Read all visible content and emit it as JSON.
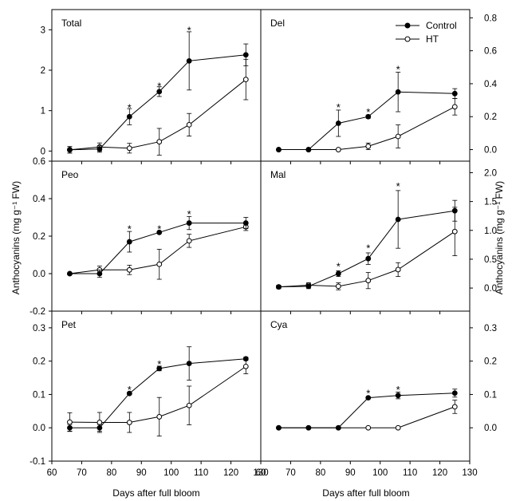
{
  "figure": {
    "x_axis_title": "Days after full bloom",
    "y_axis_title_left": "Anthocyanins (mg g⁻¹ FW)",
    "y_axis_title_right": "Anthocyanins (mg g⁻¹ FW)",
    "colors": {
      "line": "#000000",
      "control_marker": "#000000",
      "ht_marker": "#ffffff"
    }
  },
  "legend": {
    "items": [
      {
        "label": "Control",
        "marker": "filled-circle"
      },
      {
        "label": "HT",
        "marker": "open-circle"
      }
    ]
  },
  "chart_data": [
    {
      "type": "line",
      "title": "Total",
      "panel": "top-left",
      "y_axis_side": "left",
      "xlim": [
        60,
        130
      ],
      "ylim": [
        -0.25,
        3.5
      ],
      "yticks": [
        0,
        1,
        2,
        3
      ],
      "ytick_labels": [
        "0",
        "1",
        "2",
        "3"
      ],
      "xticks": [
        60,
        70,
        80,
        90,
        100,
        110,
        120,
        130
      ],
      "xtick_labels": [],
      "show_x_tick_labels": false,
      "x": [
        66,
        76,
        86,
        96,
        106,
        125
      ],
      "series": [
        {
          "name": "Control",
          "values": [
            0.03,
            0.05,
            0.85,
            1.47,
            2.23,
            2.38
          ],
          "errors": [
            0.08,
            0.08,
            0.2,
            0.12,
            0.72,
            0.27
          ]
        },
        {
          "name": "HT",
          "values": [
            0.03,
            0.1,
            0.07,
            0.23,
            0.65,
            1.77
          ],
          "errors": [
            0.08,
            0.1,
            0.12,
            0.33,
            0.28,
            0.5
          ]
        }
      ],
      "annotations": [
        {
          "text": "*",
          "x": 86,
          "y": 1.08
        },
        {
          "text": "*",
          "x": 96,
          "y": 1.62
        },
        {
          "text": "*",
          "x": 106,
          "y": 3.0
        }
      ]
    },
    {
      "type": "line",
      "title": "Del",
      "panel": "top-right",
      "y_axis_side": "right",
      "xlim": [
        60,
        130
      ],
      "ylim": [
        -0.07,
        0.85
      ],
      "yticks": [
        0.0,
        0.2,
        0.4,
        0.6,
        0.8
      ],
      "ytick_labels": [
        "0.0",
        "0.2",
        "0.4",
        "0.6",
        "0.8"
      ],
      "xticks": [
        60,
        70,
        80,
        90,
        100,
        110,
        120,
        130
      ],
      "xtick_labels": [],
      "show_x_tick_labels": false,
      "x": [
        66,
        76,
        86,
        96,
        106,
        125
      ],
      "series": [
        {
          "name": "Control",
          "values": [
            0.0,
            0.0,
            0.16,
            0.2,
            0.35,
            0.34
          ],
          "errors": [
            0.0,
            0.0,
            0.08,
            0.01,
            0.12,
            0.03
          ]
        },
        {
          "name": "HT",
          "values": [
            0.0,
            0.0,
            0.0,
            0.02,
            0.08,
            0.26
          ],
          "errors": [
            0.0,
            0.0,
            0.0,
            0.02,
            0.07,
            0.05
          ]
        }
      ],
      "annotations": [
        {
          "text": "*",
          "x": 86,
          "y": 0.26
        },
        {
          "text": "*",
          "x": 96,
          "y": 0.23
        },
        {
          "text": "*",
          "x": 106,
          "y": 0.49
        }
      ]
    },
    {
      "type": "line",
      "title": "Peo",
      "panel": "middle-left",
      "y_axis_side": "left",
      "xlim": [
        60,
        130
      ],
      "ylim": [
        -0.2,
        0.6
      ],
      "yticks": [
        -0.2,
        0.0,
        0.2,
        0.4,
        0.6
      ],
      "ytick_labels": [
        "-0.2",
        "0.0",
        "0.2",
        "0.4",
        "0.6"
      ],
      "xticks": [
        60,
        70,
        80,
        90,
        100,
        110,
        120,
        130
      ],
      "xtick_labels": [],
      "show_x_tick_labels": false,
      "x": [
        66,
        76,
        86,
        96,
        106,
        125
      ],
      "series": [
        {
          "name": "Control",
          "values": [
            0.0,
            0.0,
            0.17,
            0.22,
            0.27,
            0.27
          ],
          "errors": [
            0.0,
            0.02,
            0.055,
            0.0,
            0.035,
            0.03
          ]
        },
        {
          "name": "HT",
          "values": [
            0.0,
            0.02,
            0.02,
            0.05,
            0.175,
            0.25
          ],
          "errors": [
            0.0,
            0.02,
            0.025,
            0.08,
            0.035,
            0.02
          ]
        }
      ],
      "annotations": [
        {
          "text": "*",
          "x": 86,
          "y": 0.24
        },
        {
          "text": "*",
          "x": 96,
          "y": 0.24
        },
        {
          "text": "*",
          "x": 106,
          "y": 0.32
        }
      ]
    },
    {
      "type": "line",
      "title": "Mal",
      "panel": "middle-right",
      "y_axis_side": "right",
      "xlim": [
        60,
        130
      ],
      "ylim": [
        -0.4,
        2.2
      ],
      "yticks": [
        0.0,
        0.5,
        1.0,
        1.5,
        2.0
      ],
      "ytick_labels": [
        "0.0",
        "0.5",
        "1.0",
        "1.5",
        "2.0"
      ],
      "xticks": [
        60,
        70,
        80,
        90,
        100,
        110,
        120,
        130
      ],
      "xtick_labels": [],
      "show_x_tick_labels": false,
      "x": [
        66,
        76,
        86,
        96,
        106,
        125
      ],
      "series": [
        {
          "name": "Control",
          "values": [
            0.02,
            0.03,
            0.25,
            0.51,
            1.19,
            1.34
          ],
          "errors": [
            0.03,
            0.04,
            0.05,
            0.1,
            0.5,
            0.18
          ]
        },
        {
          "name": "HT",
          "values": [
            0.02,
            0.05,
            0.03,
            0.13,
            0.32,
            0.98
          ],
          "errors": [
            0.03,
            0.04,
            0.06,
            0.14,
            0.12,
            0.42
          ]
        }
      ],
      "annotations": [
        {
          "text": "*",
          "x": 86,
          "y": 0.38
        },
        {
          "text": "*",
          "x": 96,
          "y": 0.7
        },
        {
          "text": "*",
          "x": 106,
          "y": 1.77
        }
      ]
    },
    {
      "type": "line",
      "title": "Pet",
      "panel": "bottom-left",
      "y_axis_side": "left",
      "xlim": [
        60,
        130
      ],
      "ylim": [
        -0.1,
        0.35
      ],
      "yticks": [
        -0.1,
        0.0,
        0.1,
        0.2,
        0.3
      ],
      "ytick_labels": [
        "-0.1",
        "0.0",
        "0.1",
        "0.2",
        "0.3"
      ],
      "xticks": [
        60,
        70,
        80,
        90,
        100,
        110,
        120,
        130
      ],
      "xtick_labels": [
        "60",
        "70",
        "80",
        "90",
        "100",
        "110",
        "120",
        "130"
      ],
      "show_x_tick_labels": true,
      "x": [
        66,
        76,
        86,
        96,
        106,
        125
      ],
      "series": [
        {
          "name": "Control",
          "values": [
            0.0,
            0.0,
            0.103,
            0.178,
            0.193,
            0.207
          ],
          "errors": [
            0.01,
            0.01,
            0.003,
            0.007,
            0.05,
            0.005
          ]
        },
        {
          "name": "HT",
          "values": [
            0.017,
            0.016,
            0.016,
            0.033,
            0.067,
            0.184
          ],
          "errors": [
            0.028,
            0.03,
            0.03,
            0.058,
            0.058,
            0.022
          ]
        }
      ],
      "annotations": [
        {
          "text": "*",
          "x": 86,
          "y": 0.115
        },
        {
          "text": "*",
          "x": 96,
          "y": 0.192
        }
      ]
    },
    {
      "type": "line",
      "title": "Cya",
      "panel": "bottom-right",
      "y_axis_side": "right",
      "xlim": [
        60,
        130
      ],
      "ylim": [
        -0.1,
        0.35
      ],
      "yticks": [
        0.0,
        0.1,
        0.2,
        0.3
      ],
      "ytick_labels": [
        "0.0",
        "0.1",
        "0.2",
        "0.3"
      ],
      "xticks": [
        60,
        70,
        80,
        90,
        100,
        110,
        120,
        130
      ],
      "xtick_labels": [
        "60",
        "70",
        "80",
        "90",
        "100",
        "110",
        "120",
        "130"
      ],
      "show_x_tick_labels": true,
      "x": [
        66,
        76,
        86,
        96,
        106,
        125
      ],
      "series": [
        {
          "name": "Control",
          "values": [
            0.0,
            0.0,
            0.0,
            0.09,
            0.097,
            0.104
          ],
          "errors": [
            0.0,
            0.0,
            0.0,
            0.003,
            0.01,
            0.012
          ]
        },
        {
          "name": "HT",
          "values": [
            0.0,
            0.0,
            0.0,
            0.0,
            0.0,
            0.063
          ],
          "errors": [
            0.0,
            0.0,
            0.0,
            0.0,
            0.0,
            0.02
          ]
        }
      ],
      "annotations": [
        {
          "text": "*",
          "x": 96,
          "y": 0.105
        },
        {
          "text": "*",
          "x": 106,
          "y": 0.115
        }
      ]
    }
  ]
}
